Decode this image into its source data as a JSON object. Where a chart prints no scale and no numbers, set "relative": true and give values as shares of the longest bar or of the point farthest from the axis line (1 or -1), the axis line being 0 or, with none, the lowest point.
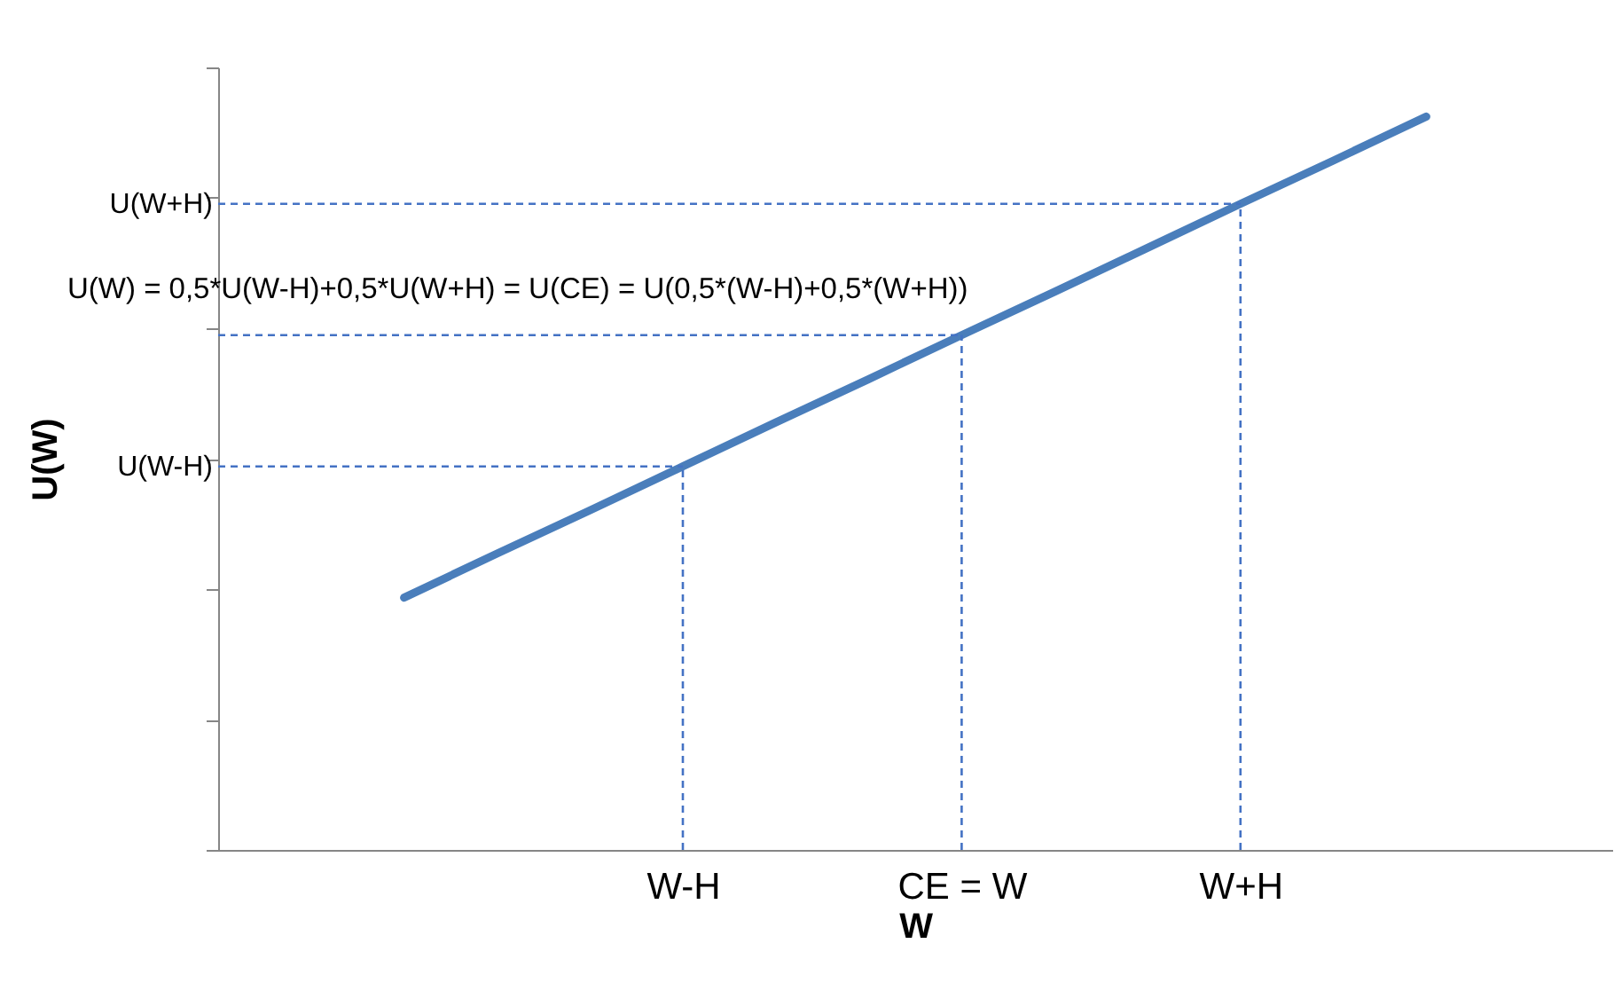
{
  "chart_data": {
    "type": "line",
    "relative": true,
    "xlabel": "W",
    "ylabel": "U(W)",
    "categories": [
      null,
      null,
      null,
      null,
      null,
      "W-H",
      null,
      null,
      "CE = W",
      null,
      null,
      "W+H",
      null,
      null,
      null,
      null
    ],
    "series": [
      {
        "color": "#4a7ebb",
        "values": [
          null,
          null,
          0.344,
          0.404,
          0.463,
          0.523,
          0.583,
          0.642,
          0.702,
          0.761,
          0.821,
          0.881,
          0.94,
          1,
          null,
          null
        ]
      }
    ],
    "ref_lines": [
      {
        "axis": "y",
        "value": 0.523,
        "label": "U(W-H)",
        "color": "#4472c4",
        "line_style": "dashed"
      },
      {
        "axis": "y",
        "value": 0.702,
        "label": null,
        "color": "#4472c4",
        "line_style": "dashed"
      },
      {
        "axis": "y",
        "value": 0.881,
        "label": "U(W+H)",
        "color": "#4472c4",
        "line_style": "dashed"
      },
      {
        "axis": "x",
        "value": "W-H",
        "color": "#4472c4",
        "line_style": "dashed"
      },
      {
        "axis": "x",
        "value": "CE = W",
        "color": "#4472c4",
        "line_style": "dashed"
      },
      {
        "axis": "x",
        "value": "W+H",
        "color": "#4472c4",
        "line_style": "dashed"
      }
    ],
    "annotations": [
      "U(W) = 0,5*U(W-H)+0,5*U(W+H) = U(CE) = U(0,5*(W-H)+0,5*(W+H))"
    ]
  }
}
